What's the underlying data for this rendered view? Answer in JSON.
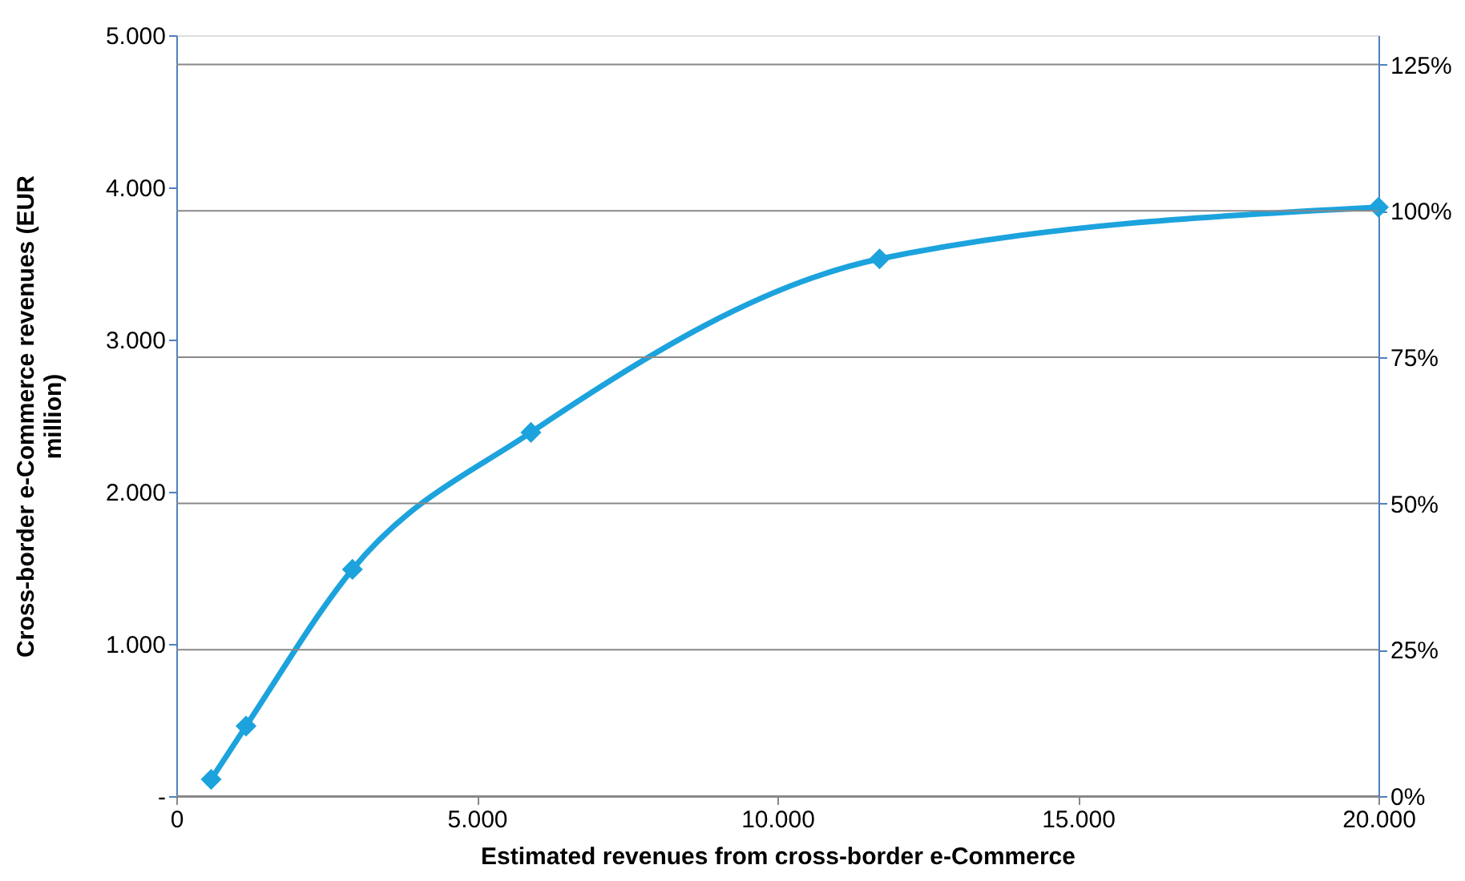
{
  "chart_data": {
    "type": "line",
    "xlabel": "Estimated revenues from cross-border e-Commerce",
    "ylabel": "Cross-border e-Commerce revenues (EUR million)",
    "x": [
      580,
      1160,
      2930,
      5900,
      11700,
      20000
    ],
    "series": [
      {
        "color": "#1ca3dd",
        "values": [
          110,
          460,
          1490,
          2390,
          3530,
          3870
        ]
      }
    ],
    "xlim": [
      0,
      20000
    ],
    "xticks": [
      0,
      {
        "value": 5000,
        "label": "5.000"
      },
      {
        "value": 10000,
        "label": "10.000"
      },
      {
        "value": 15000,
        "label": "15.000"
      },
      {
        "value": 20000,
        "label": "20.000"
      }
    ],
    "ylim": [
      0,
      5000
    ],
    "yticks": [
      {
        "value": 0,
        "label": "-"
      },
      {
        "value": 1000,
        "label": "1.000"
      },
      {
        "value": 2000,
        "label": "2.000"
      },
      {
        "value": 3000,
        "label": "3.000"
      },
      {
        "value": 4000,
        "label": "4.000"
      },
      {
        "value": 5000,
        "label": "5.000"
      }
    ],
    "y2lim": [
      0,
      130
    ],
    "y2ticks": [
      {
        "value": 0,
        "label": "0%"
      },
      {
        "value": 25,
        "label": "25%"
      },
      {
        "value": 50,
        "label": "50%"
      },
      {
        "value": 75,
        "label": "75%"
      },
      {
        "value": 100,
        "label": "100%"
      },
      {
        "value": 125,
        "label": "125%"
      }
    ],
    "grid": true,
    "marker": "diamond",
    "line_style": "solid",
    "legend": false
  }
}
